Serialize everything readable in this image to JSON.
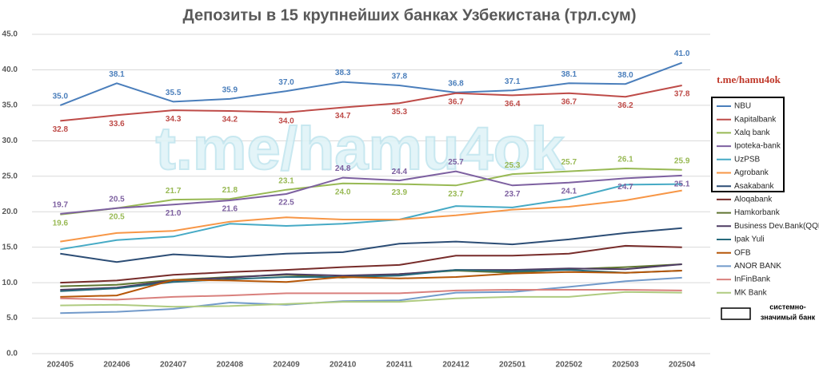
{
  "chart_data": {
    "type": "line",
    "title": "Депозиты в 15 крупнейших банках Узбекистана (трл.сум)",
    "watermark": "t.me/hamu4ok",
    "key_note": [
      "системно-",
      "значимый банк"
    ],
    "categories": [
      "202405",
      "202406",
      "202407",
      "202408",
      "202409",
      "202410",
      "202411",
      "202412",
      "202501",
      "202502",
      "202503",
      "202504"
    ],
    "ylim": [
      0,
      45
    ],
    "yticks": [
      {
        "value": 0,
        "label": "0.0"
      },
      {
        "value": 5,
        "label": "5.0"
      },
      {
        "value": 10,
        "label": "10.0"
      },
      {
        "value": 15,
        "label": "15.0"
      },
      {
        "value": 20,
        "label": "20.0"
      },
      {
        "value": 25,
        "label": "25.0"
      },
      {
        "value": 30,
        "label": "30.0"
      },
      {
        "value": 35,
        "label": "35.0"
      },
      {
        "value": 40,
        "label": "40.0"
      },
      {
        "value": 45,
        "label": "45.0"
      }
    ],
    "grid": true,
    "series": [
      {
        "name": "NBU",
        "color": "#4a7ebb",
        "values": [
          35.0,
          38.1,
          35.5,
          35.9,
          37.0,
          38.3,
          37.8,
          36.8,
          37.1,
          38.1,
          38.0,
          41.0
        ],
        "value_labels": [
          "35.0",
          "38.1",
          "35.5",
          "35.9",
          "37.0",
          "38.3",
          "37.8",
          "36.8",
          "37.1",
          "38.1",
          "38.0",
          "41.0"
        ]
      },
      {
        "name": "Kapitalbank",
        "color": "#be4b48",
        "values": [
          32.8,
          33.6,
          34.3,
          34.2,
          34.0,
          34.7,
          35.3,
          36.7,
          36.4,
          36.7,
          36.2,
          37.8
        ],
        "value_labels": [
          "32.8",
          "33.6",
          "34.3",
          "34.2",
          "34.0",
          "34.7",
          "35.3",
          "36.7",
          "36.4",
          "36.7",
          "36.2",
          "37.8"
        ]
      },
      {
        "name": "Xalq bank",
        "color": "#98b954",
        "values": [
          19.6,
          20.5,
          21.7,
          21.8,
          23.1,
          24.0,
          23.9,
          23.7,
          25.3,
          25.7,
          26.1,
          25.9
        ],
        "value_labels": [
          "19.6",
          "20.5",
          "21.7",
          "21.8",
          "23.1",
          "24.0",
          "23.9",
          "23.7",
          "25.3",
          "25.7",
          "26.1",
          "25.9"
        ]
      },
      {
        "name": "Ipoteka-bank",
        "color": "#7d60a0",
        "values": [
          19.7,
          20.5,
          21.0,
          21.6,
          22.5,
          24.8,
          24.4,
          25.7,
          23.7,
          24.1,
          24.7,
          25.1
        ],
        "value_labels": [
          "19.7",
          "20.5",
          "21.0",
          "21.6",
          "22.5",
          "24.8",
          "24.4",
          "25.7",
          "23.7",
          "24.1",
          "24.7",
          "25.1"
        ]
      },
      {
        "name": "UzPSB",
        "color": "#46aac5",
        "values": [
          14.7,
          16.0,
          16.5,
          18.3,
          18.0,
          18.3,
          18.9,
          20.8,
          20.6,
          21.8,
          23.8,
          23.9
        ]
      },
      {
        "name": "Agrobank",
        "color": "#f79646",
        "values": [
          15.8,
          17.0,
          17.3,
          18.6,
          19.2,
          18.9,
          18.9,
          19.5,
          20.3,
          20.7,
          21.6,
          23.0
        ]
      },
      {
        "name": "Asakabank",
        "color": "#2c4d75",
        "values": [
          14.1,
          12.9,
          14.0,
          13.6,
          14.1,
          14.3,
          15.5,
          15.8,
          15.4,
          16.1,
          17.0,
          17.7
        ]
      },
      {
        "name": "Aloqabank",
        "color": "#772c2a",
        "values": [
          10.0,
          10.3,
          11.1,
          11.5,
          11.8,
          12.2,
          12.5,
          13.8,
          13.8,
          14.1,
          15.2,
          15.0
        ]
      },
      {
        "name": "Hamkorbank",
        "color": "#5f7530",
        "values": [
          9.5,
          9.7,
          10.4,
          10.8,
          11.1,
          10.7,
          11.2,
          11.7,
          11.4,
          11.9,
          12.2,
          12.6
        ]
      },
      {
        "name": "Business Dev.Bank(QQB)",
        "color": "#4d3b62",
        "values": [
          9.0,
          9.3,
          10.3,
          10.7,
          11.2,
          11.0,
          11.2,
          11.8,
          11.8,
          12.0,
          11.9,
          12.6
        ]
      },
      {
        "name": "Ipak Yuli",
        "color": "#276a7c",
        "values": [
          8.8,
          9.2,
          10.1,
          10.5,
          10.8,
          10.8,
          11.0,
          11.8,
          11.6,
          11.8,
          11.4,
          11.7
        ]
      },
      {
        "name": "OFB",
        "color": "#b65708",
        "values": [
          8.0,
          8.2,
          10.4,
          10.3,
          10.1,
          10.8,
          10.6,
          10.8,
          11.3,
          11.5,
          11.4,
          11.7
        ]
      },
      {
        "name": "ANOR BANK",
        "color": "#729aca",
        "values": [
          5.7,
          5.9,
          6.3,
          7.2,
          6.9,
          7.4,
          7.5,
          8.6,
          8.7,
          9.4,
          10.2,
          10.7
        ]
      },
      {
        "name": "InFinBank",
        "color": "#d9807d",
        "values": [
          7.8,
          7.6,
          8.0,
          8.2,
          8.5,
          8.5,
          8.5,
          8.9,
          9.0,
          9.0,
          9.0,
          8.9
        ]
      },
      {
        "name": "MK Bank",
        "color": "#afcb80",
        "values": [
          6.8,
          6.9,
          6.6,
          6.7,
          7.0,
          7.3,
          7.3,
          7.8,
          8.0,
          8.0,
          8.7,
          8.6
        ]
      }
    ]
  }
}
